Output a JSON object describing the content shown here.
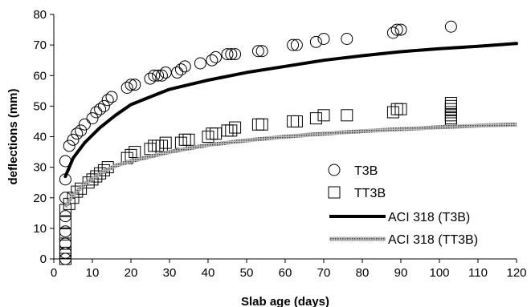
{
  "chart_data": {
    "type": "scatter",
    "xlabel": "Slab age (days)",
    "ylabel": "deflections (mm)",
    "xlim": [
      0,
      120
    ],
    "ylim": [
      0,
      80
    ],
    "xticks": [
      0,
      10,
      20,
      30,
      40,
      50,
      60,
      70,
      80,
      90,
      100,
      110,
      120
    ],
    "yticks": [
      0,
      10,
      20,
      30,
      40,
      50,
      60,
      70,
      80
    ],
    "grid": false,
    "legend_position": "bottom-right",
    "series": [
      {
        "name": "T3B",
        "kind": "marker-circle",
        "points": [
          [
            3,
            0
          ],
          [
            3,
            2
          ],
          [
            3,
            5
          ],
          [
            3,
            9
          ],
          [
            3,
            14
          ],
          [
            3,
            20
          ],
          [
            3,
            26
          ],
          [
            3,
            32
          ],
          [
            4,
            37
          ],
          [
            5,
            39
          ],
          [
            6,
            41
          ],
          [
            7,
            42
          ],
          [
            8,
            44
          ],
          [
            10,
            46
          ],
          [
            11,
            48
          ],
          [
            12,
            49
          ],
          [
            13,
            50
          ],
          [
            14,
            52
          ],
          [
            15,
            53
          ],
          [
            19,
            56
          ],
          [
            20,
            57
          ],
          [
            21,
            57
          ],
          [
            25,
            59
          ],
          [
            26,
            60
          ],
          [
            27,
            60
          ],
          [
            28,
            60
          ],
          [
            29,
            61
          ],
          [
            32,
            61
          ],
          [
            33,
            62
          ],
          [
            34,
            63
          ],
          [
            38,
            64
          ],
          [
            41,
            65
          ],
          [
            42,
            66
          ],
          [
            45,
            67
          ],
          [
            46,
            67
          ],
          [
            47,
            67
          ],
          [
            53,
            68
          ],
          [
            54,
            68
          ],
          [
            62,
            70
          ],
          [
            63,
            70
          ],
          [
            68,
            71
          ],
          [
            70,
            72
          ],
          [
            76,
            72
          ],
          [
            88,
            74
          ],
          [
            89,
            75
          ],
          [
            90,
            75
          ],
          [
            103,
            76
          ]
        ]
      },
      {
        "name": "TT3B",
        "kind": "marker-square",
        "points": [
          [
            3,
            0
          ],
          [
            3,
            2
          ],
          [
            3,
            5
          ],
          [
            3,
            8
          ],
          [
            3,
            12
          ],
          [
            3,
            16
          ],
          [
            4,
            18
          ],
          [
            5,
            20
          ],
          [
            6,
            22
          ],
          [
            7,
            23
          ],
          [
            9,
            25
          ],
          [
            10,
            26
          ],
          [
            11,
            27
          ],
          [
            12,
            28
          ],
          [
            13,
            29
          ],
          [
            14,
            30
          ],
          [
            19,
            33
          ],
          [
            20,
            34
          ],
          [
            21,
            35
          ],
          [
            25,
            36
          ],
          [
            26,
            37
          ],
          [
            27,
            37
          ],
          [
            28,
            37
          ],
          [
            29,
            38
          ],
          [
            33,
            38
          ],
          [
            34,
            39
          ],
          [
            35,
            39
          ],
          [
            40,
            40
          ],
          [
            41,
            41
          ],
          [
            42,
            41
          ],
          [
            45,
            42
          ],
          [
            46,
            42
          ],
          [
            47,
            43
          ],
          [
            53,
            44
          ],
          [
            54,
            44
          ],
          [
            62,
            45
          ],
          [
            63,
            45
          ],
          [
            68,
            46
          ],
          [
            70,
            47
          ],
          [
            76,
            47
          ],
          [
            88,
            48
          ],
          [
            89,
            49
          ],
          [
            90,
            49
          ],
          [
            103,
            45
          ],
          [
            103,
            46
          ],
          [
            103,
            47
          ],
          [
            103,
            48
          ],
          [
            103,
            49
          ],
          [
            103,
            50
          ],
          [
            103,
            51
          ]
        ]
      },
      {
        "name": "ACI 318 (T3B)",
        "kind": "line-solid",
        "color": "#000000",
        "points": [
          [
            3,
            27
          ],
          [
            5,
            33
          ],
          [
            8,
            38
          ],
          [
            12,
            43
          ],
          [
            16,
            47
          ],
          [
            20,
            50.5
          ],
          [
            25,
            53
          ],
          [
            30,
            55.5
          ],
          [
            40,
            58.5
          ],
          [
            50,
            61
          ],
          [
            60,
            63
          ],
          [
            70,
            65
          ],
          [
            80,
            66.5
          ],
          [
            90,
            67.8
          ],
          [
            100,
            68.8
          ],
          [
            110,
            69.6
          ],
          [
            120,
            70.5
          ]
        ]
      },
      {
        "name": "ACI 318 (TT3B)",
        "kind": "line-hatched",
        "color": "#8a8a8a",
        "points": [
          [
            3,
            17
          ],
          [
            5,
            21
          ],
          [
            8,
            24.5
          ],
          [
            12,
            28
          ],
          [
            16,
            30.5
          ],
          [
            20,
            32
          ],
          [
            25,
            33.5
          ],
          [
            30,
            35
          ],
          [
            40,
            37.3
          ],
          [
            50,
            38.8
          ],
          [
            60,
            40
          ],
          [
            70,
            41
          ],
          [
            80,
            41.8
          ],
          [
            90,
            42.5
          ],
          [
            100,
            43.1
          ],
          [
            110,
            43.6
          ],
          [
            120,
            44
          ]
        ]
      }
    ]
  }
}
